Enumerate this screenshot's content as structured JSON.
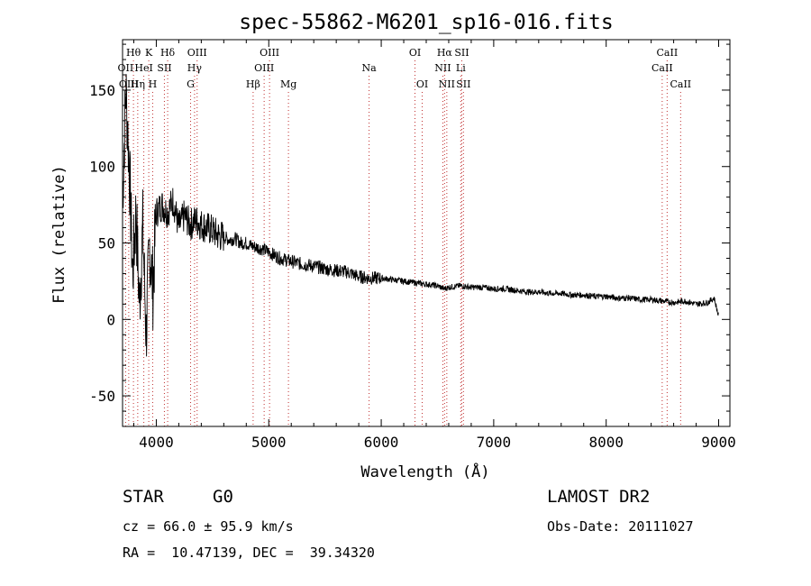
{
  "chart_data": {
    "type": "line",
    "title": "spec-55862-M6201_sp16-016.fits",
    "xlabel": "Wavelength (Å)",
    "ylabel": "Flux (relative)",
    "xlim": [
      3700,
      9100
    ],
    "ylim": [
      -70,
      183
    ],
    "xticks": [
      4000,
      5000,
      6000,
      7000,
      8000,
      9000
    ],
    "yticks": [
      -50,
      0,
      50,
      100,
      150
    ],
    "grid": false,
    "series": [
      {
        "name": "flux",
        "x": [
          3700,
          3730,
          3760,
          3790,
          3820,
          3850,
          3880,
          3910,
          3940,
          3970,
          4000,
          4050,
          4100,
          4150,
          4200,
          4250,
          4300,
          4350,
          4400,
          4450,
          4500,
          4550,
          4600,
          4650,
          4700,
          4750,
          4800,
          4850,
          4900,
          4950,
          5000,
          5100,
          5200,
          5300,
          5400,
          5500,
          5600,
          5700,
          5800,
          5900,
          6000,
          6100,
          6200,
          6300,
          6400,
          6500,
          6560,
          6600,
          6700,
          6800,
          6900,
          7000,
          7100,
          7200,
          7300,
          7400,
          7500,
          7600,
          7700,
          7800,
          7900,
          8000,
          8100,
          8200,
          8300,
          8400,
          8500,
          8600,
          8700,
          8800,
          8900,
          8960,
          9000
        ],
        "y": [
          80,
          150,
          100,
          30,
          70,
          10,
          60,
          -10,
          50,
          20,
          70,
          75,
          70,
          78,
          60,
          68,
          62,
          65,
          62,
          60,
          58,
          55,
          54,
          52,
          53,
          50,
          50,
          48,
          47,
          46,
          44,
          40,
          38,
          36,
          35,
          33,
          32,
          31,
          28,
          27,
          27,
          26,
          25,
          24,
          23,
          22,
          20,
          21,
          22,
          21,
          21,
          20,
          20,
          19,
          18,
          18,
          17,
          17,
          16,
          16,
          15,
          15,
          14,
          14,
          13,
          13,
          12,
          11,
          12,
          10,
          11,
          14,
          2
        ]
      }
    ],
    "lines_top": [
      {
        "label": "Hθ",
        "x": 3797
      },
      {
        "label": "K",
        "x": 3933
      },
      {
        "label": "Hδ",
        "x": 4101
      },
      {
        "label": "OIII",
        "x": 4363
      },
      {
        "label": "OIII",
        "x": 5007
      },
      {
        "label": "OI",
        "x": 6300
      },
      {
        "label": "Hα",
        "x": 6563
      },
      {
        "label": "SII",
        "x": 6716
      },
      {
        "label": "CaII",
        "x": 8542
      }
    ],
    "lines_mid": [
      {
        "label": "OII",
        "x": 3727
      },
      {
        "label": "HeI",
        "x": 3889
      },
      {
        "label": "SII",
        "x": 4072
      },
      {
        "label": "Hγ",
        "x": 4340
      },
      {
        "label": "OIII",
        "x": 4959
      },
      {
        "label": "Na",
        "x": 5892
      },
      {
        "label": "NII",
        "x": 6548
      },
      {
        "label": "Li",
        "x": 6707
      },
      {
        "label": "CaII",
        "x": 8498
      }
    ],
    "lines_low": [
      {
        "label": "OIII",
        "x": 3755
      },
      {
        "label": "Hη",
        "x": 3835
      },
      {
        "label": "H",
        "x": 3968
      },
      {
        "label": "G",
        "x": 4305
      },
      {
        "label": "Hβ",
        "x": 4861
      },
      {
        "label": "Mg",
        "x": 5175
      },
      {
        "label": "OI",
        "x": 6364
      },
      {
        "label": "NII",
        "x": 6583
      },
      {
        "label": "SII",
        "x": 6731
      },
      {
        "label": "CaII",
        "x": 8662
      }
    ]
  },
  "info": {
    "object_class": "STAR",
    "subclass": "G0",
    "survey": "LAMOST DR2",
    "cz": "cz = 66.0 ± 95.9 km/s",
    "obs_date": "Obs-Date: 20111027",
    "coords": "RA =  10.47139, DEC =  39.34320"
  }
}
